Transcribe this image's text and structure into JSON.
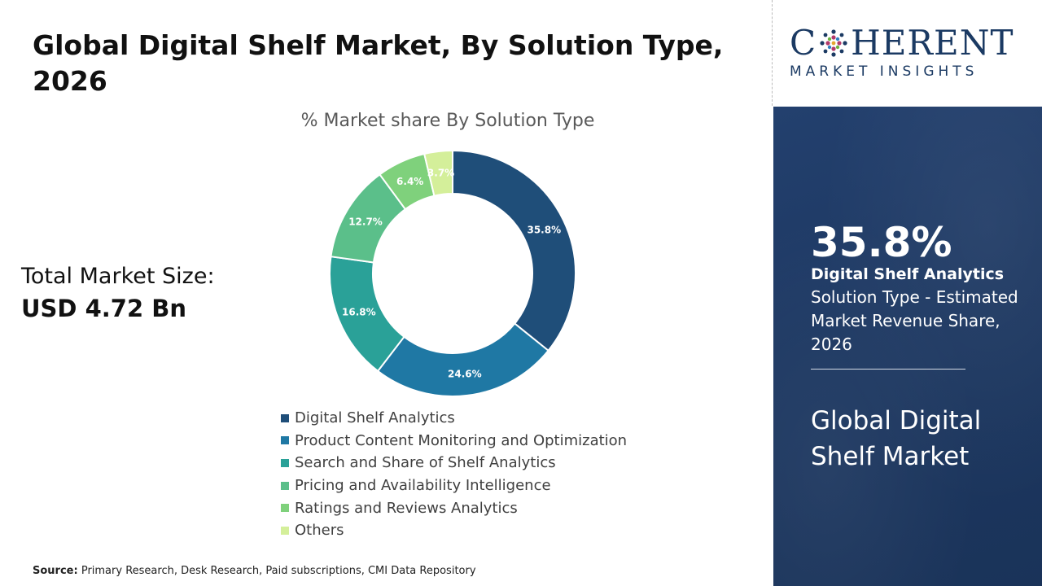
{
  "header": {
    "title": "Global Digital Shelf Market, By Solution Type, 2026",
    "total_label": "Total Market Size:",
    "total_value": "USD 4.72 Bn"
  },
  "chart_data": {
    "type": "pie",
    "subtitle": "% Market share By Solution Type",
    "donut": true,
    "categories": [
      "Digital Shelf Analytics",
      "Product Content Monitoring and Optimization",
      "Search and Share of Shelf Analytics",
      "Pricing and Availability Intelligence",
      "Ratings and Reviews Analytics",
      "Others"
    ],
    "values": [
      35.8,
      24.6,
      16.8,
      12.7,
      6.4,
      3.7
    ],
    "labels": [
      "35.8%",
      "24.6%",
      "16.8%",
      "12.7%",
      "6.4%",
      "3.7%"
    ],
    "colors": [
      "#1f4e79",
      "#1f78a4",
      "#2aa198",
      "#5bbf8a",
      "#7fd17c",
      "#d4ef9a"
    ],
    "legend_position": "bottom"
  },
  "source": {
    "label": "Source:",
    "text": "Primary Research, Desk Research, Paid subscriptions, CMI Data Repository"
  },
  "logo": {
    "left": "C",
    "right": "HERENT",
    "bottom": "MARKET INSIGHTS"
  },
  "panel": {
    "highlight_value": "35.8%",
    "segment_name": "Digital Shelf Analytics",
    "description": "Solution Type - Estimated Market Revenue Share, 2026",
    "market_name": "Global Digital Shelf Market"
  }
}
